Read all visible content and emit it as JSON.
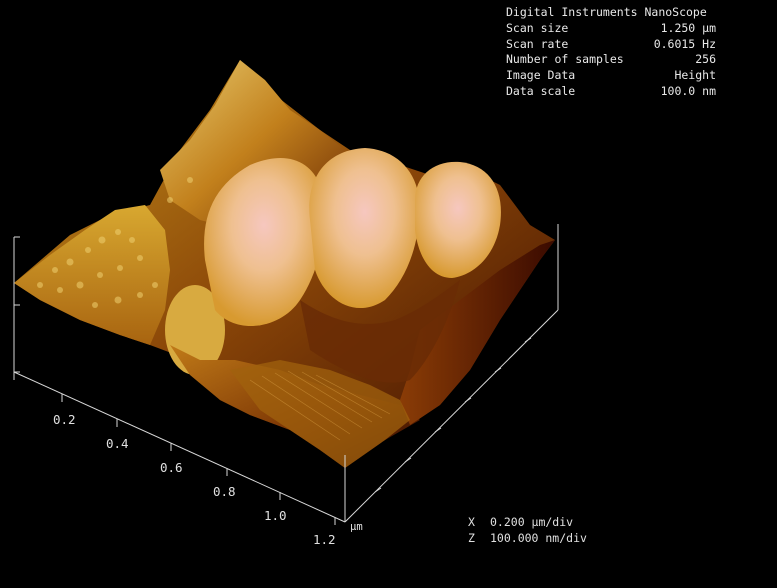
{
  "header": {
    "title": "Digital Instruments NanoScope",
    "params": [
      {
        "key": "Scan size",
        "value": "1.250 µm"
      },
      {
        "key": "Scan rate",
        "value": "0.6015 Hz"
      },
      {
        "key": "Number of samples",
        "value": "256"
      },
      {
        "key": "Image Data",
        "value": "Height"
      },
      {
        "key": "Data scale",
        "value": "100.0 nm"
      }
    ]
  },
  "axes": {
    "x_ticks": [
      "0.2",
      "0.4",
      "0.6",
      "0.8",
      "1.0",
      "1.2"
    ],
    "x_unit": "µm"
  },
  "scale_legend": {
    "x_axis_letter": "X",
    "x_value": "0.200 µm/div",
    "z_axis_letter": "Z",
    "z_value": "100.000 nm/div"
  },
  "colors": {
    "background": "#000000",
    "low": "#3a0a00",
    "mid": "#b06a10",
    "high": "#e8c860",
    "peak": "#f0b8b0"
  }
}
